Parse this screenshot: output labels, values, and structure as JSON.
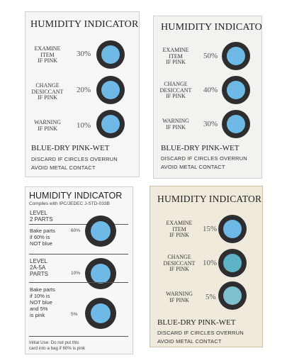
{
  "cards": {
    "top_left": {
      "title": "HUMIDITY INDICATOR",
      "rows": [
        {
          "label": [
            "EXAMINE",
            "ITEM",
            "IF PINK"
          ],
          "percent": "30%"
        },
        {
          "label": [
            "CHANGE",
            "DESICCANT",
            "IF PINK"
          ],
          "percent": "20%"
        },
        {
          "label": [
            "WARNING",
            "IF PINK"
          ],
          "percent": "10%"
        }
      ],
      "footer_line1": "BLUE-DRY   PINK-WET",
      "footer_line2": "DISCARD IF CIRCLES OVERRUN",
      "footer_line3": "AVOID   METAL   CONTACT"
    },
    "top_right": {
      "title": "HUMIDITY INDICATOR",
      "rows": [
        {
          "label": [
            "EXAMINE",
            "ITEM",
            "IF PINK"
          ],
          "percent": "50%"
        },
        {
          "label": [
            "CHANGE",
            "DESICCANT",
            "IF PINK"
          ],
          "percent": "40%"
        },
        {
          "label": [
            "WARNING",
            "IF PINK"
          ],
          "percent": "30%"
        }
      ],
      "footer_line1": "BLUE-DRY   PINK-WET",
      "footer_line2": "DISCARD IF CIRCLES OVERRUN",
      "footer_line3": "AVOID   METAL   CONTACT"
    },
    "bottom_left": {
      "title": "HUMIDITY INDICATOR",
      "subtitle": "Compiles with IPC/JEDEC J-STD-033B",
      "level1": [
        "LEVEL",
        "2 PARTS"
      ],
      "text1": [
        "Bake parts",
        "if 60% is",
        "NOT blue"
      ],
      "pct60": "60%",
      "level2": [
        "LEVEL",
        "2A-5A",
        "PARTS"
      ],
      "pct10": "10%",
      "text2": [
        "Bake parts",
        "if 10% is",
        "NOT blue",
        "and 5%",
        "is pink"
      ],
      "pct5": "5%",
      "note": [
        "Initial Use: Do not put this",
        "card into a bag if 60% is pink"
      ]
    },
    "bottom_right": {
      "title": "HUMIDITY INDICATOR",
      "rows": [
        {
          "label": [
            "EXAMINE",
            "ITEM",
            "IF PINK"
          ],
          "percent": "15%"
        },
        {
          "label": [
            "CHANGE",
            "DESICCANT",
            "IF PINK"
          ],
          "percent": "10%"
        },
        {
          "label": [
            "WARNING",
            "IF PINK"
          ],
          "percent": "5%"
        }
      ],
      "footer_line1": "BLUE-DRY   PINK-WET",
      "footer_line2": "DISCARD IF CIRCLES OVERRUN",
      "footer_line3": "AVOID   METAL   CONTACT"
    }
  },
  "colors": {
    "indicator_blue": "#6fb9e6",
    "indicator_ring": "#2e2e30",
    "card_tan": "#efeadb"
  }
}
